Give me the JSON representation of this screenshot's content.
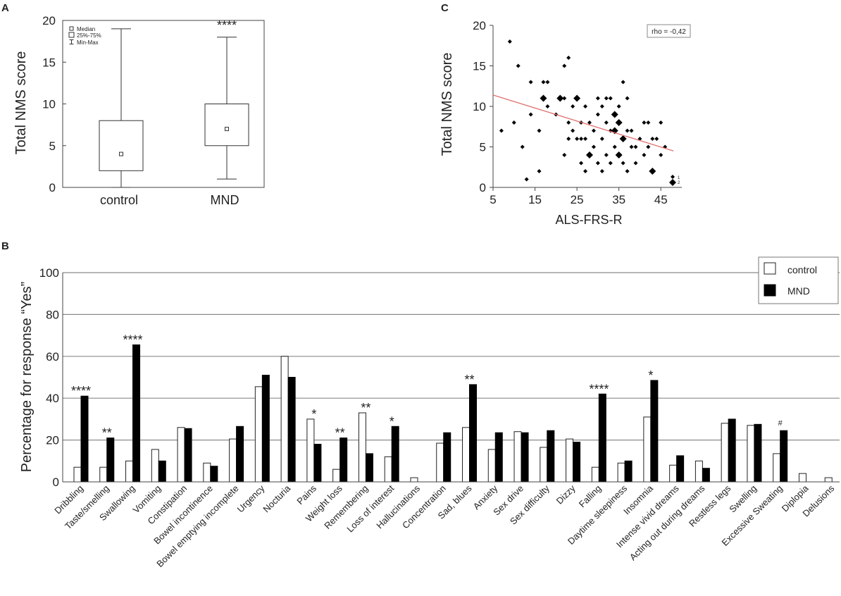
{
  "panel_labels": {
    "a": "A",
    "b": "B",
    "c": "C"
  },
  "chart_data": [
    {
      "panel": "A",
      "type": "box",
      "ylabel": "Total NMS score",
      "ylim": [
        0,
        20
      ],
      "yticks": [
        0,
        5,
        10,
        15,
        20
      ],
      "legend": {
        "median": "Median",
        "box": "25%-75%",
        "whisker": "Min-Max"
      },
      "groups": [
        {
          "name": "control",
          "min": 0,
          "q1": 2,
          "median": 4,
          "q3": 8,
          "max": 19,
          "annotation": ""
        },
        {
          "name": "MND",
          "min": 1,
          "q1": 5,
          "median": 7,
          "q3": 10,
          "max": 18,
          "annotation": "****"
        }
      ]
    },
    {
      "panel": "C",
      "type": "scatter",
      "xlabel": "ALS-FRS-R",
      "ylabel": "Total NMS score",
      "xlim": [
        5,
        50
      ],
      "ylim": [
        0,
        20
      ],
      "xticks": [
        5,
        15,
        25,
        35,
        45
      ],
      "yticks": [
        0,
        5,
        10,
        15,
        20
      ],
      "annotation": "rho = -0,42",
      "trend_line": {
        "x": [
          5,
          48
        ],
        "y": [
          11.4,
          4.5
        ]
      },
      "size_legend": [
        "1",
        "2"
      ],
      "points": [
        {
          "x": 7,
          "y": 7,
          "n": 1
        },
        {
          "x": 9,
          "y": 18,
          "n": 1
        },
        {
          "x": 10,
          "y": 8,
          "n": 1
        },
        {
          "x": 11,
          "y": 15,
          "n": 1
        },
        {
          "x": 12,
          "y": 5,
          "n": 1
        },
        {
          "x": 13,
          "y": 1,
          "n": 1
        },
        {
          "x": 14,
          "y": 9,
          "n": 1
        },
        {
          "x": 14,
          "y": 13,
          "n": 1
        },
        {
          "x": 16,
          "y": 2,
          "n": 1
        },
        {
          "x": 16,
          "y": 7,
          "n": 1
        },
        {
          "x": 17,
          "y": 11,
          "n": 2
        },
        {
          "x": 17,
          "y": 13,
          "n": 1
        },
        {
          "x": 18,
          "y": 10,
          "n": 1
        },
        {
          "x": 18,
          "y": 13,
          "n": 1
        },
        {
          "x": 20,
          "y": 9,
          "n": 1
        },
        {
          "x": 21,
          "y": 11,
          "n": 2
        },
        {
          "x": 22,
          "y": 11,
          "n": 1
        },
        {
          "x": 22,
          "y": 4,
          "n": 1
        },
        {
          "x": 22,
          "y": 15,
          "n": 1
        },
        {
          "x": 23,
          "y": 16,
          "n": 1
        },
        {
          "x": 23,
          "y": 6,
          "n": 1
        },
        {
          "x": 23,
          "y": 8,
          "n": 1
        },
        {
          "x": 24,
          "y": 7,
          "n": 1
        },
        {
          "x": 24,
          "y": 10,
          "n": 1
        },
        {
          "x": 25,
          "y": 6,
          "n": 1
        },
        {
          "x": 25,
          "y": 11,
          "n": 2
        },
        {
          "x": 26,
          "y": 3,
          "n": 1
        },
        {
          "x": 26,
          "y": 6,
          "n": 1
        },
        {
          "x": 26,
          "y": 8,
          "n": 1
        },
        {
          "x": 27,
          "y": 2,
          "n": 1
        },
        {
          "x": 27,
          "y": 6,
          "n": 1
        },
        {
          "x": 27,
          "y": 10,
          "n": 1
        },
        {
          "x": 28,
          "y": 4,
          "n": 2
        },
        {
          "x": 28,
          "y": 8,
          "n": 1
        },
        {
          "x": 29,
          "y": 5,
          "n": 1
        },
        {
          "x": 29,
          "y": 7,
          "n": 1
        },
        {
          "x": 30,
          "y": 3,
          "n": 1
        },
        {
          "x": 30,
          "y": 9,
          "n": 1
        },
        {
          "x": 30,
          "y": 11,
          "n": 1
        },
        {
          "x": 31,
          "y": 2,
          "n": 1
        },
        {
          "x": 31,
          "y": 6,
          "n": 1
        },
        {
          "x": 31,
          "y": 10,
          "n": 1
        },
        {
          "x": 32,
          "y": 4,
          "n": 1
        },
        {
          "x": 32,
          "y": 8,
          "n": 1
        },
        {
          "x": 32,
          "y": 11,
          "n": 1
        },
        {
          "x": 33,
          "y": 3,
          "n": 1
        },
        {
          "x": 33,
          "y": 7,
          "n": 1
        },
        {
          "x": 33,
          "y": 11,
          "n": 1
        },
        {
          "x": 34,
          "y": 5,
          "n": 1
        },
        {
          "x": 34,
          "y": 7,
          "n": 2
        },
        {
          "x": 34,
          "y": 9,
          "n": 2
        },
        {
          "x": 35,
          "y": 4,
          "n": 2
        },
        {
          "x": 35,
          "y": 8,
          "n": 2
        },
        {
          "x": 35,
          "y": 10,
          "n": 1
        },
        {
          "x": 36,
          "y": 3,
          "n": 1
        },
        {
          "x": 36,
          "y": 6,
          "n": 2
        },
        {
          "x": 36,
          "y": 13,
          "n": 1
        },
        {
          "x": 37,
          "y": 2,
          "n": 1
        },
        {
          "x": 37,
          "y": 7,
          "n": 1
        },
        {
          "x": 37,
          "y": 11,
          "n": 1
        },
        {
          "x": 38,
          "y": 5,
          "n": 1
        },
        {
          "x": 38,
          "y": 7,
          "n": 1
        },
        {
          "x": 39,
          "y": 3,
          "n": 1
        },
        {
          "x": 39,
          "y": 5,
          "n": 1
        },
        {
          "x": 40,
          "y": 6,
          "n": 1
        },
        {
          "x": 41,
          "y": 8,
          "n": 1
        },
        {
          "x": 41,
          "y": 4,
          "n": 1
        },
        {
          "x": 42,
          "y": 8,
          "n": 1
        },
        {
          "x": 42,
          "y": 5,
          "n": 1
        },
        {
          "x": 43,
          "y": 2,
          "n": 2
        },
        {
          "x": 43,
          "y": 6,
          "n": 1
        },
        {
          "x": 44,
          "y": 6,
          "n": 1
        },
        {
          "x": 45,
          "y": 4,
          "n": 1
        },
        {
          "x": 45,
          "y": 8,
          "n": 1
        },
        {
          "x": 46,
          "y": 5,
          "n": 1
        }
      ]
    },
    {
      "panel": "B",
      "type": "bar",
      "ylabel": "Percentage for response “Yes”",
      "ylim": [
        0,
        100
      ],
      "yticks": [
        0,
        20,
        40,
        60,
        80,
        100
      ],
      "categories": [
        "Dribbling",
        "Taste/smelling",
        "Swallowing",
        "Vomiting",
        "Constipation",
        "Bowel incontinence",
        "Bowel emptying incomplete",
        "Urgency",
        "Nocturia",
        "Pains",
        "Weight loss",
        "Remembering",
        "Loss of interest",
        "Hallucinations",
        "Concentration",
        "Sad, blues",
        "Anxiety",
        "Sex drive",
        "Sex difficulty",
        "Dizzy",
        "Falling",
        "Daytime sleepiness",
        "Insomnia",
        "Intense vivid dreams",
        "Acting out during dreams",
        "Restless legs",
        "Swelling",
        "Excessive Sweating",
        "Diplopia",
        "Delusions"
      ],
      "series": [
        {
          "name": "control",
          "color": "#ffffff",
          "values": [
            7,
            7,
            10,
            15.5,
            26,
            9,
            20.5,
            45.5,
            60,
            30,
            6,
            33,
            12,
            2,
            18.5,
            26,
            15.5,
            24,
            16.5,
            20.5,
            7,
            9,
            31,
            8,
            10,
            28,
            27,
            13.5,
            4,
            2
          ]
        },
        {
          "name": "MND",
          "color": "#000000",
          "values": [
            41,
            21,
            65.5,
            10,
            25.5,
            7.5,
            26.5,
            51,
            50,
            18,
            21,
            13.5,
            26.5,
            0,
            23.5,
            46.5,
            23.5,
            23.5,
            24.5,
            19,
            42,
            10,
            48.5,
            12.5,
            6.5,
            30,
            27.5,
            24.5,
            0,
            0
          ]
        }
      ],
      "annotations": [
        "****",
        "**",
        "****",
        "",
        "",
        "",
        "",
        "",
        "",
        "*",
        "**",
        "**",
        "*",
        "",
        "",
        "**",
        "",
        "",
        "",
        "",
        "****",
        "",
        "*",
        "",
        "",
        "",
        "",
        "#",
        "",
        ""
      ]
    }
  ]
}
